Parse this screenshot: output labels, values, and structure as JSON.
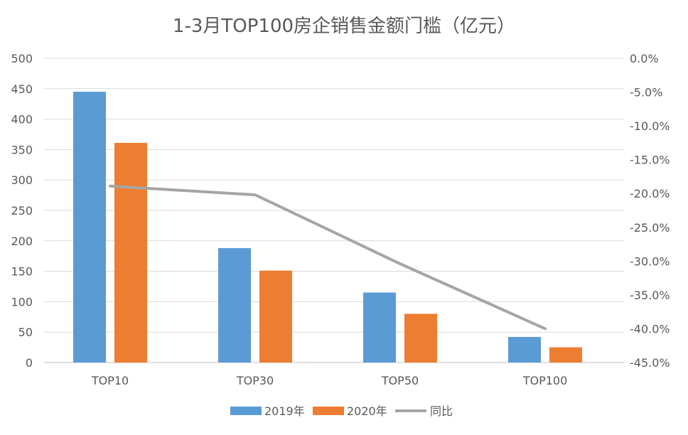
{
  "chart_data": {
    "type": "bar",
    "title": "1-3月TOP100房企销售金额门槛（亿元）",
    "categories": [
      "TOP10",
      "TOP30",
      "TOP50",
      "TOP100"
    ],
    "series": [
      {
        "name": "2019年",
        "type": "bar",
        "axis": "left",
        "color": "#5B9BD5",
        "values": [
          445,
          188,
          115,
          42
        ]
      },
      {
        "name": "2020年",
        "type": "bar",
        "axis": "left",
        "color": "#ED7D31",
        "values": [
          361,
          151,
          80,
          25
        ]
      },
      {
        "name": "同比",
        "type": "line",
        "axis": "right",
        "color": "#A5A5A5",
        "values": [
          -18.9,
          -20.2,
          -30.4,
          -40.0
        ]
      }
    ],
    "y_left": {
      "min": 0,
      "max": 500,
      "step": 50,
      "tick_labels": [
        "0",
        "50",
        "100",
        "150",
        "200",
        "250",
        "300",
        "350",
        "400",
        "450",
        "500"
      ]
    },
    "y_right": {
      "min": -45,
      "max": 0,
      "step": 5,
      "tick_labels": [
        "-45.0%",
        "-40.0%",
        "-35.0%",
        "-30.0%",
        "-25.0%",
        "-20.0%",
        "-15.0%",
        "-10.0%",
        "-5.0%",
        "0.0%"
      ]
    },
    "grid": true,
    "legend_position": "bottom"
  }
}
